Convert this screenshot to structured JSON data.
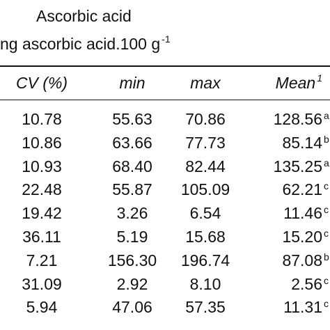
{
  "header": {
    "title": "Ascorbic acid",
    "unit": "ng ascorbic acid.100 g",
    "unit_sup": "-1"
  },
  "table": {
    "columns": [
      "CV (%)",
      "min",
      "max",
      "Mean"
    ],
    "mean_sup": "1",
    "rows": [
      [
        "10.78",
        "55.63",
        "70.86",
        "128.56",
        "a"
      ],
      [
        "10.86",
        "63.66",
        "77.73",
        "85.14",
        "b"
      ],
      [
        "10.93",
        "68.40",
        "82.44",
        "135.25",
        "a"
      ],
      [
        "22.48",
        "55.87",
        "105.09",
        "62.21",
        "c"
      ],
      [
        "19.42",
        "3.26",
        "6.54",
        "11.46",
        "c"
      ],
      [
        "36.11",
        "5.19",
        "15.68",
        "15.20",
        "c"
      ],
      [
        "7.21",
        "156.30",
        "196.74",
        "87.08",
        "b"
      ],
      [
        "31.09",
        "2.92",
        "8.10",
        "2.56",
        "c"
      ],
      [
        "5.94",
        "47.06",
        "57.35",
        "11.31",
        "c"
      ]
    ]
  }
}
